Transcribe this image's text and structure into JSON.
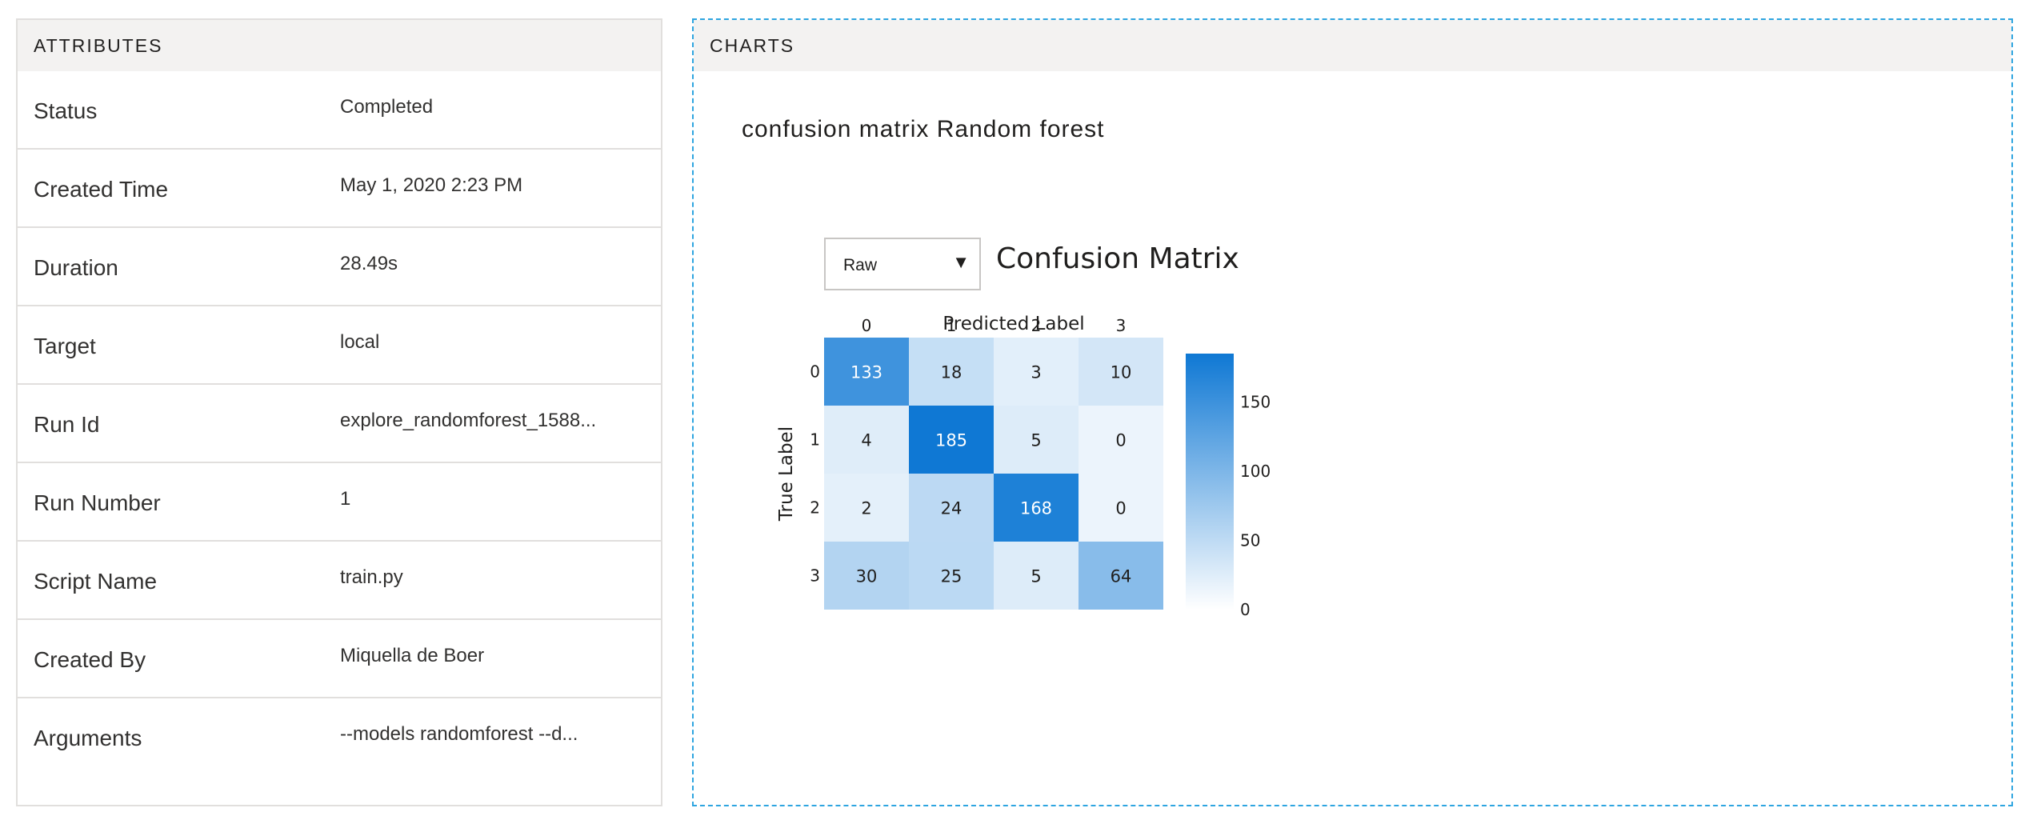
{
  "attributes": {
    "header": "ATTRIBUTES",
    "rows": [
      {
        "name": "Status",
        "value": "Completed"
      },
      {
        "name": "Created Time",
        "value": "May 1, 2020 2:23 PM"
      },
      {
        "name": "Duration",
        "value": "28.49s"
      },
      {
        "name": "Target",
        "value": "local"
      },
      {
        "name": "Run Id",
        "value": "explore_randomforest_1588..."
      },
      {
        "name": "Run Number",
        "value": "1"
      },
      {
        "name": "Script Name",
        "value": "train.py"
      },
      {
        "name": "Created By",
        "value": "Miquella de Boer"
      },
      {
        "name": "Arguments",
        "value": "--models randomforest --d..."
      }
    ]
  },
  "charts": {
    "header": "CHARTS",
    "title": "confusion matrix Random forest",
    "dropdown": {
      "selected": "Raw",
      "arrow_icon": "triangle-down-icon"
    },
    "matrix_title": "Confusion Matrix"
  },
  "chart_data": {
    "type": "heatmap",
    "title": "Confusion Matrix",
    "xlabel": "Predicted Label",
    "ylabel": "True Label",
    "x_categories": [
      "0",
      "1",
      "2",
      "3"
    ],
    "y_categories": [
      "0",
      "1",
      "2",
      "3"
    ],
    "values": [
      [
        133,
        18,
        3,
        10
      ],
      [
        4,
        185,
        5,
        0
      ],
      [
        2,
        24,
        168,
        0
      ],
      [
        30,
        25,
        5,
        64
      ]
    ],
    "colorbar": {
      "min": 0,
      "max": 185,
      "ticks": [
        0,
        50,
        100,
        150
      ]
    },
    "colorscale": [
      "#ffffff",
      "#0f78d4"
    ],
    "legend": "right"
  }
}
